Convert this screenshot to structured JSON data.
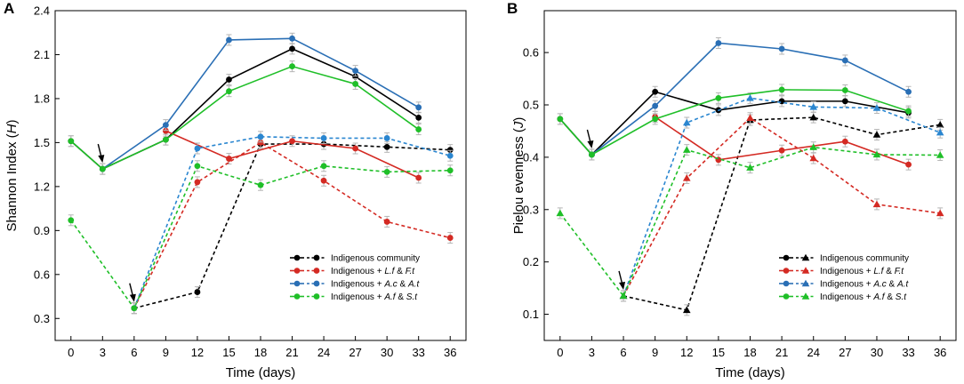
{
  "chart_data": [
    {
      "type": "line",
      "panel_label": "A",
      "ylabel_main": "Shannon Index (",
      "ylabel_symbol": "H",
      "ylabel_end": ")",
      "xlabel": "Time (days)",
      "xlim": [
        -1.5,
        37.5
      ],
      "ylim": [
        0.15,
        2.4
      ],
      "xticks": [
        "0",
        "3",
        "6",
        "9",
        "12",
        "15",
        "18",
        "21",
        "24",
        "27",
        "30",
        "33",
        "36"
      ],
      "yticks": [
        "0.3",
        "0.6",
        "0.9",
        "1.2",
        "1.5",
        "1.8",
        "2.1",
        "2.4"
      ],
      "arrows": [
        {
          "x": 3,
          "y": 1.32
        },
        {
          "x": 6,
          "y": 0.37
        }
      ],
      "series": [
        {
          "name": "Indigenous community solid",
          "color": "#000000",
          "dash": false,
          "marker": "circle",
          "points": [
            [
              0,
              1.51
            ],
            [
              3,
              1.32
            ],
            [
              9,
              1.52
            ],
            [
              15,
              1.93
            ],
            [
              21,
              2.14
            ],
            [
              27,
              1.95
            ],
            [
              33,
              1.67
            ]
          ]
        },
        {
          "name": "Indigenous community dashed",
          "color": "#000000",
          "dash": true,
          "marker": "circle",
          "points": [
            [
              6,
              0.37
            ],
            [
              12,
              0.48
            ],
            [
              18,
              1.49
            ],
            [
              24,
              1.49
            ],
            [
              30,
              1.47
            ],
            [
              36,
              1.45
            ]
          ]
        },
        {
          "name": "Indigenous + L.f & F.t solid",
          "color": "#d42a23",
          "dash": false,
          "marker": "circle",
          "points": [
            [
              9,
              1.58
            ],
            [
              15,
              1.39
            ],
            [
              21,
              1.51
            ],
            [
              27,
              1.46
            ],
            [
              33,
              1.26
            ]
          ]
        },
        {
          "name": "Indigenous + L.f & F.t dashed",
          "color": "#d42a23",
          "dash": true,
          "marker": "circle",
          "points": [
            [
              6,
              0.37
            ],
            [
              12,
              1.23
            ],
            [
              18,
              1.5
            ],
            [
              24,
              1.24
            ],
            [
              30,
              0.96
            ],
            [
              36,
              0.85
            ]
          ]
        },
        {
          "name": "Indigenous + A.c & A.t solid",
          "color": "#2a6fb5",
          "dash": false,
          "marker": "circle",
          "points": [
            [
              3,
              1.32
            ],
            [
              9,
              1.62
            ],
            [
              15,
              2.2
            ],
            [
              21,
              2.21
            ],
            [
              27,
              1.99
            ],
            [
              33,
              1.74
            ]
          ]
        },
        {
          "name": "Indigenous + A.c & A.t dashed",
          "color": "#2a86d0",
          "dash": true,
          "marker": "circle",
          "points": [
            [
              6,
              0.37
            ],
            [
              12,
              1.46
            ],
            [
              18,
              1.54
            ],
            [
              24,
              1.53
            ],
            [
              30,
              1.53
            ],
            [
              36,
              1.41
            ]
          ]
        },
        {
          "name": "Indigenous + A.f & S.t solid",
          "color": "#1fbf28",
          "dash": false,
          "marker": "circle",
          "points": [
            [
              0,
              1.51
            ],
            [
              3,
              1.32
            ],
            [
              9,
              1.52
            ],
            [
              15,
              1.85
            ],
            [
              21,
              2.02
            ],
            [
              27,
              1.9
            ],
            [
              33,
              1.59
            ]
          ]
        },
        {
          "name": "Indigenous + A.f & S.t dashed",
          "color": "#1fbf28",
          "dash": true,
          "marker": "circle",
          "points": [
            [
              0,
              0.97
            ],
            [
              6,
              0.37
            ],
            [
              12,
              1.34
            ],
            [
              18,
              1.21
            ],
            [
              24,
              1.34
            ],
            [
              30,
              1.3
            ],
            [
              36,
              1.31
            ]
          ]
        }
      ],
      "legend": {
        "placement": "bottom-right",
        "entries": [
          {
            "prefix": "Indigenous community",
            "suffix": "",
            "color": "#000000",
            "marker": "circle"
          },
          {
            "prefix": "Indigenous + ",
            "italic": "L.f",
            "mid": " & ",
            "italic2": "F.t",
            "color": "#d42a23",
            "marker": "circle"
          },
          {
            "prefix": "Indigenous + ",
            "italic": "A.c",
            "mid": " & ",
            "italic2": "A.t",
            "color": "#2a6fb5",
            "marker": "circle"
          },
          {
            "prefix": "Indigenous + ",
            "italic": "A.f",
            "mid": " & ",
            "italic2": "S.t",
            "color": "#1fbf28",
            "marker": "circle"
          }
        ]
      }
    },
    {
      "type": "line",
      "panel_label": "B",
      "ylabel_main": "Pielou evenness (",
      "ylabel_symbol": "J",
      "ylabel_end": ")",
      "xlabel": "Time (days)",
      "xlim": [
        -1.5,
        37.5
      ],
      "ylim": [
        0.05,
        0.68
      ],
      "xticks": [
        "0",
        "3",
        "6",
        "9",
        "12",
        "15",
        "18",
        "21",
        "24",
        "27",
        "30",
        "33",
        "36"
      ],
      "yticks": [
        "0.1",
        "0.2",
        "0.3",
        "0.4",
        "0.5",
        "0.6"
      ],
      "arrows": [
        {
          "x": 3,
          "y": 0.405
        },
        {
          "x": 6,
          "y": 0.135
        }
      ],
      "series": [
        {
          "name": "Indigenous community solid",
          "color": "#000000",
          "dash": false,
          "marker": "circle",
          "points": [
            [
              0,
              0.473
            ],
            [
              3,
              0.405
            ],
            [
              9,
              0.525
            ],
            [
              15,
              0.49
            ],
            [
              21,
              0.507
            ],
            [
              27,
              0.507
            ],
            [
              33,
              0.485
            ]
          ]
        },
        {
          "name": "Indigenous community dashed",
          "color": "#000000",
          "dash": true,
          "marker": "triangle",
          "points": [
            [
              6,
              0.135
            ],
            [
              12,
              0.108
            ],
            [
              18,
              0.471
            ],
            [
              24,
              0.476
            ],
            [
              30,
              0.443
            ],
            [
              36,
              0.462
            ]
          ]
        },
        {
          "name": "Indigenous + L.f & F.t solid",
          "color": "#d42a23",
          "dash": false,
          "marker": "circle",
          "points": [
            [
              9,
              0.477
            ],
            [
              15,
              0.395
            ],
            [
              21,
              0.413
            ],
            [
              27,
              0.43
            ],
            [
              33,
              0.386
            ]
          ]
        },
        {
          "name": "Indigenous + L.f & F.t dashed",
          "color": "#d42a23",
          "dash": true,
          "marker": "triangle",
          "points": [
            [
              6,
              0.135
            ],
            [
              12,
              0.36
            ],
            [
              18,
              0.475
            ],
            [
              24,
              0.398
            ],
            [
              30,
              0.31
            ],
            [
              36,
              0.293
            ]
          ]
        },
        {
          "name": "Indigenous + A.c & A.t solid",
          "color": "#2a6fb5",
          "dash": false,
          "marker": "circle",
          "points": [
            [
              3,
              0.405
            ],
            [
              9,
              0.498
            ],
            [
              15,
              0.618
            ],
            [
              21,
              0.607
            ],
            [
              27,
              0.585
            ],
            [
              33,
              0.525
            ]
          ]
        },
        {
          "name": "Indigenous + A.c & A.t dashed",
          "color": "#2a86d0",
          "dash": true,
          "marker": "triangle",
          "points": [
            [
              6,
              0.135
            ],
            [
              12,
              0.466
            ],
            [
              18,
              0.513
            ],
            [
              24,
              0.496
            ],
            [
              30,
              0.494
            ],
            [
              36,
              0.447
            ]
          ]
        },
        {
          "name": "Indigenous + A.f & S.t solid",
          "color": "#1fbf28",
          "dash": false,
          "marker": "circle",
          "points": [
            [
              0,
              0.473
            ],
            [
              3,
              0.405
            ],
            [
              9,
              0.473
            ],
            [
              15,
              0.513
            ],
            [
              21,
              0.529
            ],
            [
              27,
              0.528
            ],
            [
              33,
              0.488
            ]
          ]
        },
        {
          "name": "Indigenous + A.f & S.t dashed",
          "color": "#1fbf28",
          "dash": true,
          "marker": "triangle",
          "points": [
            [
              0,
              0.293
            ],
            [
              6,
              0.135
            ],
            [
              12,
              0.414
            ],
            [
              18,
              0.38
            ],
            [
              24,
              0.419
            ],
            [
              30,
              0.405
            ],
            [
              36,
              0.404
            ]
          ]
        }
      ],
      "legend": {
        "placement": "bottom-right",
        "entries": [
          {
            "prefix": "Indigenous community",
            "suffix": "",
            "color": "#000000",
            "marker": "triangle"
          },
          {
            "prefix": "Indigenous + ",
            "italic": "L.f",
            "mid": " & ",
            "italic2": "F.t",
            "color": "#d42a23",
            "marker": "triangle"
          },
          {
            "prefix": "Indigenous + ",
            "italic": "A.c",
            "mid": " & ",
            "italic2": "A.t",
            "color": "#2a6fb5",
            "marker": "triangle"
          },
          {
            "prefix": "Indigenous + ",
            "italic": "A.f",
            "mid": " & ",
            "italic2": "S.t",
            "color": "#1fbf28",
            "marker": "triangle"
          }
        ]
      }
    }
  ]
}
